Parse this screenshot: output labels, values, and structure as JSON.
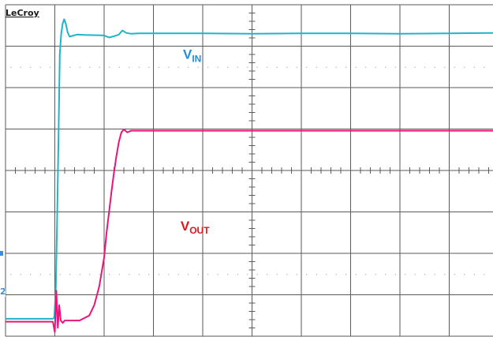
{
  "brand": "LeCroy",
  "colors": {
    "vin": "#22b3c8",
    "vout": "#e8157a",
    "vin_label": "#1f8fe0",
    "vout_label": "#e6141e",
    "grid": "#5a5a5a",
    "dots": "#8a8a8a",
    "channel_marker": "#3a8fd8"
  },
  "channel_markers": [
    "2"
  ],
  "chart_data": {
    "type": "line",
    "title": "",
    "xlabel": "",
    "ylabel": "",
    "grid": true,
    "xlim": [
      0,
      10
    ],
    "ylim": [
      0,
      8
    ],
    "series": [
      {
        "id": "vin",
        "name_main": "V",
        "name_sub": "IN",
        "color": "#22b3c8",
        "x": [
          0,
          0.96,
          0.99,
          1.02,
          1.05,
          1.08,
          1.1,
          1.13,
          1.16,
          1.19,
          1.22,
          1.26,
          1.3,
          1.36,
          1.45,
          1.6,
          2.0,
          2.1,
          2.2,
          2.3,
          2.37,
          2.45,
          2.55,
          2.7,
          3.0,
          4.0,
          5.0,
          6.0,
          7.0,
          8.0,
          9.0,
          10.0
        ],
        "y": [
          0.42,
          0.42,
          0.45,
          1.2,
          3.0,
          5.2,
          6.8,
          7.3,
          7.55,
          7.65,
          7.55,
          7.33,
          7.23,
          7.25,
          7.28,
          7.27,
          7.26,
          7.21,
          7.24,
          7.28,
          7.38,
          7.32,
          7.3,
          7.31,
          7.31,
          7.31,
          7.3,
          7.31,
          7.31,
          7.3,
          7.31,
          7.32
        ]
      },
      {
        "id": "vout",
        "name_main": "V",
        "name_sub": "OUT",
        "color": "#e8157a",
        "x": [
          0,
          0.96,
          1.0,
          1.03,
          1.06,
          1.09,
          1.12,
          1.16,
          1.2,
          1.3,
          1.5,
          1.7,
          1.8,
          1.9,
          2.0,
          2.05,
          2.1,
          2.15,
          2.2,
          2.25,
          2.3,
          2.35,
          2.4,
          2.47,
          2.55,
          2.7,
          3.0,
          4.0,
          5.0,
          6.0,
          7.0,
          8.0,
          9.0,
          10.0
        ],
        "y": [
          0.35,
          0.35,
          0.1,
          1.1,
          0.2,
          0.75,
          0.38,
          0.32,
          0.38,
          0.38,
          0.38,
          0.5,
          0.75,
          1.2,
          1.9,
          2.5,
          3.0,
          3.5,
          3.95,
          4.35,
          4.7,
          4.92,
          4.99,
          4.92,
          4.96,
          4.96,
          4.96,
          4.96,
          4.96,
          4.96,
          4.96,
          4.96,
          4.96,
          4.96
        ]
      }
    ],
    "annotations": [
      {
        "series": "vin",
        "x": 3.6,
        "y": 6.7
      },
      {
        "series": "vout",
        "x": 3.55,
        "y": 2.55
      }
    ]
  }
}
